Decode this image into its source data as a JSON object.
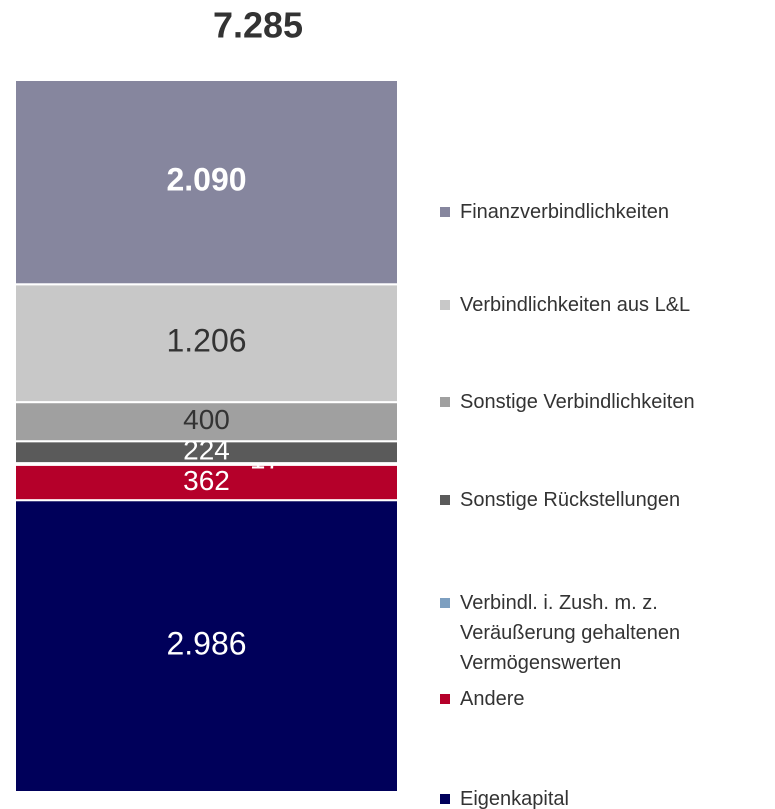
{
  "chart_data": {
    "type": "stacked_bar",
    "title": "7.285",
    "categories": [
      ""
    ],
    "series": [
      {
        "name": "Eigenkapital",
        "color": "#00005a",
        "values": [
          2986
        ],
        "value_labels": [
          "2.986"
        ],
        "label_color": "#ffffff"
      },
      {
        "name": "Andere",
        "color": "#b5002a",
        "values": [
          362
        ],
        "value_labels": [
          "362"
        ],
        "label_color": "#ffffff"
      },
      {
        "name": "Verbindl. i. Zush. m. z. Veräußerung gehaltenen Vermögenswerten",
        "color": "#7d9fc0",
        "values": [
          17
        ],
        "value_labels": [
          "17"
        ],
        "label_color": "#ffffff"
      },
      {
        "name": "Sonstige Rückstellungen",
        "color": "#5a5a5a",
        "values": [
          224
        ],
        "value_labels": [
          "224"
        ],
        "label_color": "#ffffff"
      },
      {
        "name": "Sonstige Verbindlichkeiten",
        "color": "#a0a0a0",
        "values": [
          400
        ],
        "value_labels": [
          "400"
        ],
        "label_color": "#333333"
      },
      {
        "name": "Verbindlichkeiten aus L&L",
        "color": "#c8c8c8",
        "values": [
          1206
        ],
        "value_labels": [
          "1.206"
        ],
        "label_color": "#333333"
      },
      {
        "name": "Finanzverbindlichkeiten",
        "color": "#86869e",
        "values": [
          2090
        ],
        "value_labels": [
          "2.090"
        ],
        "label_color": "#ffffff",
        "label_bold": true
      }
    ],
    "legend": "right"
  }
}
